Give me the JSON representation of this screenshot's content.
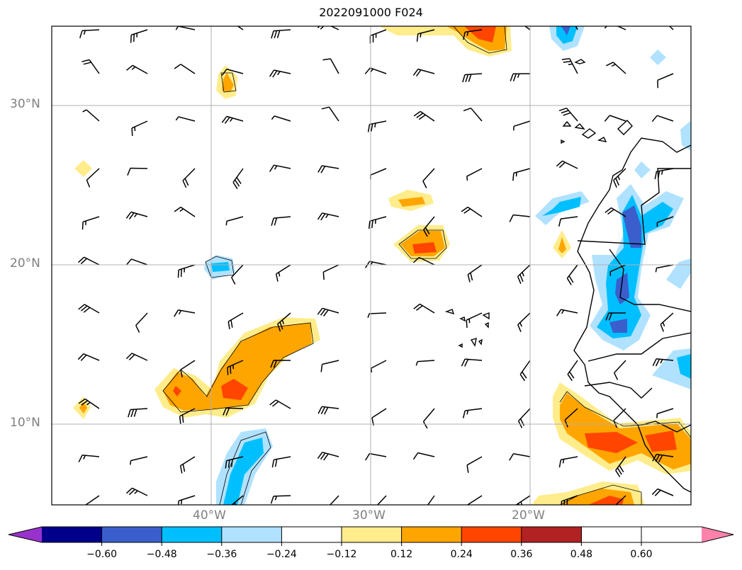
{
  "title": "2022091000 F024",
  "lat_labels": [
    "30°N",
    "20°N",
    "10°N"
  ],
  "lon_labels": [
    "40°W",
    "30°W",
    "20°W"
  ],
  "colorbar": {
    "ticks": [
      "−0.60",
      "−0.48",
      "−0.36",
      "−0.24",
      "−0.12",
      "0.12",
      "0.24",
      "0.36",
      "0.48",
      "0.60"
    ],
    "colors": [
      "#9932cc",
      "#00008b",
      "#3a5fcd",
      "#00bfff",
      "#b0e2ff",
      "#ffffff",
      "#ffec8b",
      "#ffa500",
      "#ff4500",
      "#b22222",
      "#ff82ab"
    ]
  },
  "colors": {
    "pos1": "#ffec8b",
    "pos2": "#ffa500",
    "pos3": "#ff4500",
    "neg1": "#b0e2ff",
    "neg2": "#00bfff",
    "neg3": "#3a5fcd",
    "grid": "#b0b0b0"
  }
}
